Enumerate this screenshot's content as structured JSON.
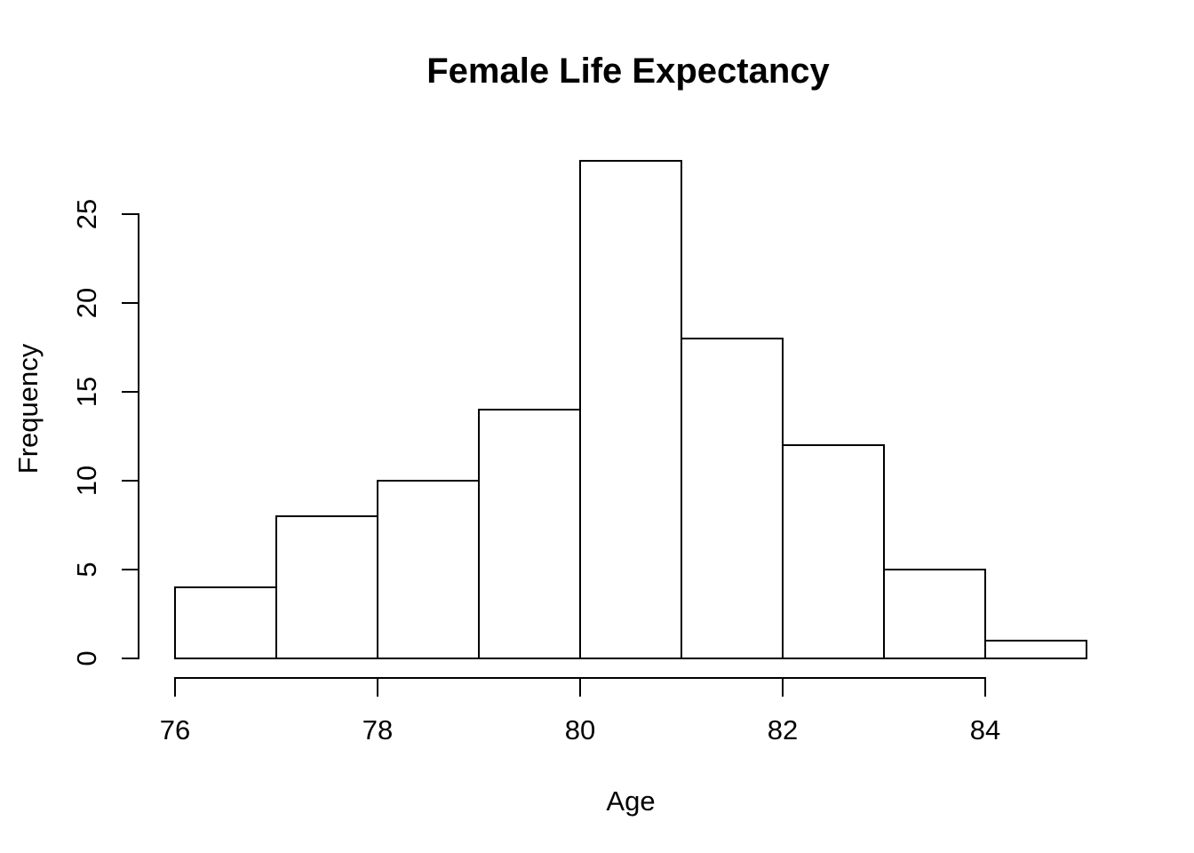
{
  "page": {
    "background": "#ffffff"
  },
  "chart_data": {
    "type": "bar",
    "subtype": "histogram",
    "title": "Female Life Expectancy",
    "xlabel": "Age",
    "ylabel": "Frequency",
    "bin_edges": [
      76,
      77,
      78,
      79,
      80,
      81,
      82,
      83,
      84,
      85
    ],
    "counts": [
      4,
      8,
      10,
      14,
      28,
      18,
      12,
      5,
      1
    ],
    "x_ticks": [
      "76",
      "78",
      "80",
      "82",
      "84"
    ],
    "x_tick_values": [
      76,
      78,
      80,
      82,
      84
    ],
    "y_ticks": [
      "0",
      "5",
      "10",
      "15",
      "20",
      "25"
    ],
    "y_tick_values": [
      0,
      5,
      10,
      15,
      20,
      25
    ],
    "xlim": [
      76,
      85
    ],
    "ylim": [
      0,
      28
    ],
    "grid": false,
    "legend": "none",
    "bar_fill": "#ffffff",
    "bar_stroke": "#000000",
    "axis_color": "#000000",
    "text_color": "#000000"
  }
}
